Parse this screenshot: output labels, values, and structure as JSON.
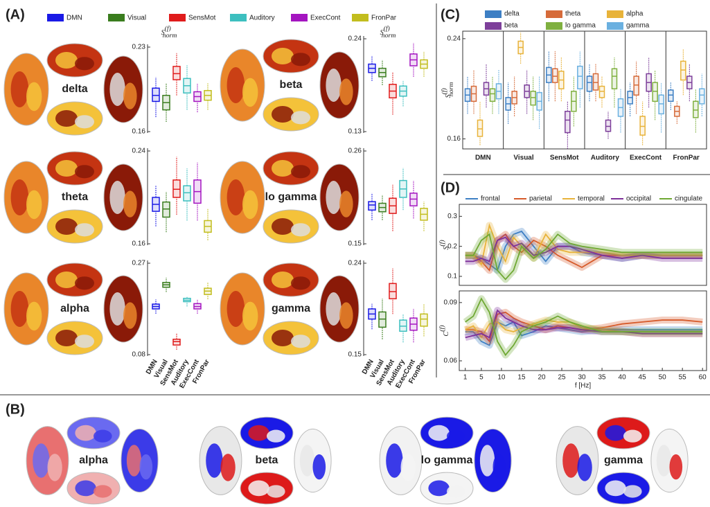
{
  "panels": [
    "(A)",
    "(B)",
    "(C)",
    "(D)"
  ],
  "panel_a_legend": [
    {
      "name": "DMN",
      "color": "#1a1ae6"
    },
    {
      "name": "Visual",
      "color": "#3a7d1e"
    },
    {
      "name": "SensMot",
      "color": "#e01b1b"
    },
    {
      "name": "Auditory",
      "color": "#3dbfbf"
    },
    {
      "name": "ExecCont",
      "color": "#a415c0"
    },
    {
      "name": "FronPar",
      "color": "#c2bd1e"
    }
  ],
  "panel_a_ylabel": {
    "base": "S",
    "sup": "(f)",
    "sub": "norm"
  },
  "panel_b_labels": [
    "alpha",
    "beta",
    "lo gamma",
    "gamma"
  ],
  "chart_data": [
    {
      "type": "box",
      "title": "delta",
      "ylim": [
        0.16,
        0.23
      ],
      "yticks": [
        0.16,
        0.23
      ],
      "boxes": [
        [
          0.172,
          0.185,
          0.19,
          0.196,
          0.205
        ],
        [
          0.168,
          0.178,
          0.184,
          0.19,
          0.2
        ],
        [
          0.19,
          0.203,
          0.208,
          0.214,
          0.225
        ],
        [
          0.178,
          0.192,
          0.198,
          0.204,
          0.215
        ],
        [
          0.176,
          0.185,
          0.189,
          0.193,
          0.2
        ],
        [
          0.178,
          0.186,
          0.19,
          0.194,
          0.2
        ]
      ]
    },
    {
      "type": "box",
      "title": "beta",
      "ylim": [
        0.13,
        0.24
      ],
      "yticks": [
        0.13,
        0.24
      ],
      "boxes": [
        [
          0.19,
          0.2,
          0.205,
          0.21,
          0.22
        ],
        [
          0.185,
          0.195,
          0.2,
          0.205,
          0.215
        ],
        [
          0.15,
          0.17,
          0.178,
          0.186,
          0.2
        ],
        [
          0.16,
          0.172,
          0.178,
          0.184,
          0.19
        ],
        [
          0.195,
          0.208,
          0.215,
          0.222,
          0.235
        ],
        [
          0.195,
          0.205,
          0.21,
          0.215,
          0.225
        ]
      ]
    },
    {
      "type": "box",
      "title": "theta",
      "ylim": [
        0.16,
        0.24
      ],
      "yticks": [
        0.16,
        0.24
      ],
      "boxes": [
        [
          0.175,
          0.188,
          0.194,
          0.2,
          0.21
        ],
        [
          0.17,
          0.183,
          0.19,
          0.196,
          0.205
        ],
        [
          0.185,
          0.2,
          0.207,
          0.215,
          0.235
        ],
        [
          0.18,
          0.197,
          0.204,
          0.21,
          0.225
        ],
        [
          0.18,
          0.195,
          0.205,
          0.215,
          0.23
        ],
        [
          0.163,
          0.17,
          0.175,
          0.18,
          0.19
        ]
      ]
    },
    {
      "type": "box",
      "title": "lo gamma",
      "ylim": [
        0.15,
        0.26
      ],
      "yticks": [
        0.15,
        0.26
      ],
      "boxes": [
        [
          0.178,
          0.19,
          0.196,
          0.2,
          0.21
        ],
        [
          0.178,
          0.188,
          0.193,
          0.198,
          0.208
        ],
        [
          0.165,
          0.186,
          0.195,
          0.204,
          0.22
        ],
        [
          0.19,
          0.205,
          0.215,
          0.225,
          0.24
        ],
        [
          0.18,
          0.195,
          0.203,
          0.21,
          0.225
        ],
        [
          0.165,
          0.178,
          0.185,
          0.192,
          0.2
        ]
      ]
    },
    {
      "type": "box",
      "title": "alpha",
      "ylim": [
        0.08,
        0.27
      ],
      "yticks": [
        0.08,
        0.27
      ],
      "categories": [
        "DMN",
        "Visual",
        "SensMot",
        "Auditory",
        "ExecCont",
        "FronPar"
      ],
      "boxes": [
        [
          0.165,
          0.175,
          0.18,
          0.185,
          0.195
        ],
        [
          0.21,
          0.22,
          0.225,
          0.23,
          0.24
        ],
        [
          0.09,
          0.1,
          0.107,
          0.112,
          0.125
        ],
        [
          0.18,
          0.19,
          0.193,
          0.197,
          0.2
        ],
        [
          0.165,
          0.175,
          0.18,
          0.186,
          0.195
        ],
        [
          0.195,
          0.205,
          0.212,
          0.218,
          0.23
        ]
      ]
    },
    {
      "type": "box",
      "title": "gamma",
      "ylim": [
        0.15,
        0.24
      ],
      "yticks": [
        0.15,
        0.24
      ],
      "categories": [
        "DMN",
        "Visual",
        "SensMot",
        "Auditory",
        "ExecCont",
        "FronPar"
      ],
      "boxes": [
        [
          0.175,
          0.185,
          0.19,
          0.195,
          0.2
        ],
        [
          0.165,
          0.177,
          0.185,
          0.192,
          0.205
        ],
        [
          0.19,
          0.205,
          0.212,
          0.22,
          0.235
        ],
        [
          0.162,
          0.173,
          0.178,
          0.184,
          0.19
        ],
        [
          0.162,
          0.174,
          0.18,
          0.186,
          0.195
        ],
        [
          0.168,
          0.178,
          0.185,
          0.19,
          0.2
        ]
      ]
    },
    {
      "type": "groupbox",
      "ylabel": {
        "base": "S",
        "sup": "(f)",
        "sub": "norm"
      },
      "ylim": [
        0.152,
        0.246
      ],
      "yticks": [
        0.16,
        0.24
      ],
      "categories": [
        "DMN",
        "Visual",
        "SensMot",
        "Auditory",
        "ExecCont",
        "FronPar"
      ],
      "series": [
        {
          "name": "delta",
          "color": "#3d7fc4",
          "values": [
            [
              0.18,
              0.19,
              0.195,
              0.2,
              0.21
            ],
            [
              0.172,
              0.183,
              0.188,
              0.193,
              0.205
            ],
            [
              0.19,
              0.205,
              0.211,
              0.217,
              0.23
            ],
            [
              0.19,
              0.198,
              0.205,
              0.21,
              0.22
            ],
            [
              0.178,
              0.188,
              0.193,
              0.198,
              0.205
            ],
            [
              0.183,
              0.19,
              0.195,
              0.199,
              0.205
            ]
          ]
        },
        {
          "name": "theta",
          "color": "#d66b3a",
          "values": [
            [
              0.18,
              0.19,
              0.196,
              0.202,
              0.215
            ],
            [
              0.178,
              0.188,
              0.193,
              0.198,
              0.21
            ],
            [
              0.19,
              0.205,
              0.21,
              0.216,
              0.23
            ],
            [
              0.19,
              0.199,
              0.205,
              0.212,
              0.22
            ],
            [
              0.18,
              0.195,
              0.203,
              0.21,
              0.222
            ],
            [
              0.172,
              0.178,
              0.182,
              0.186,
              0.19
            ]
          ]
        },
        {
          "name": "alpha",
          "color": "#e8b33a",
          "values": [
            [
              0.155,
              0.162,
              0.168,
              0.175,
              0.19
            ],
            [
              0.22,
              0.228,
              0.233,
              0.238,
              0.245
            ],
            [
              0.19,
              0.2,
              0.207,
              0.214,
              0.225
            ],
            [
              0.185,
              0.193,
              0.198,
              0.202,
              0.21
            ],
            [
              0.155,
              0.163,
              0.17,
              0.178,
              0.19
            ],
            [
              0.195,
              0.207,
              0.215,
              0.222,
              0.232
            ]
          ]
        },
        {
          "name": "beta",
          "color": "#7d3f9a",
          "values": [
            [
              0.185,
              0.195,
              0.2,
              0.205,
              0.22
            ],
            [
              0.18,
              0.193,
              0.198,
              0.203,
              0.215
            ],
            [
              0.152,
              0.165,
              0.175,
              0.182,
              0.19
            ],
            [
              0.16,
              0.166,
              0.17,
              0.175,
              0.182
            ],
            [
              0.185,
              0.198,
              0.205,
              0.212,
              0.225
            ],
            [
              0.19,
              0.2,
              0.205,
              0.21,
              0.22
            ]
          ]
        },
        {
          "name": "lo gamma",
          "color": "#7fb040",
          "values": [
            [
              0.18,
              0.19,
              0.196,
              0.2,
              0.21
            ],
            [
              0.175,
              0.187,
              0.193,
              0.198,
              0.21
            ],
            [
              0.17,
              0.182,
              0.19,
              0.198,
              0.21
            ],
            [
              0.185,
              0.2,
              0.21,
              0.216,
              0.225
            ],
            [
              0.175,
              0.19,
              0.198,
              0.205,
              0.215
            ],
            [
              0.165,
              0.177,
              0.183,
              0.19,
              0.2
            ]
          ]
        },
        {
          "name": "gamma",
          "color": "#6ab0e0",
          "values": [
            [
              0.18,
              0.192,
              0.198,
              0.204,
              0.215
            ],
            [
              0.168,
              0.183,
              0.19,
              0.197,
              0.21
            ],
            [
              0.185,
              0.2,
              0.21,
              0.218,
              0.23
            ],
            [
              0.165,
              0.178,
              0.185,
              0.192,
              0.2
            ],
            [
              0.165,
              0.18,
              0.188,
              0.195,
              0.205
            ],
            [
              0.178,
              0.188,
              0.195,
              0.2,
              0.212
            ]
          ]
        }
      ]
    },
    {
      "type": "line",
      "ylabel": {
        "base": "S",
        "sup": "(f)"
      },
      "xlim": [
        -0.5,
        61
      ],
      "ylim": [
        0.07,
        0.34
      ],
      "yticks": [
        0.1,
        0.2,
        0.3
      ],
      "x": [
        1,
        3,
        5,
        7,
        9,
        11,
        13,
        15,
        18,
        21,
        24,
        27,
        30,
        35,
        40,
        45,
        50,
        55,
        60
      ],
      "series": [
        {
          "name": "frontal",
          "color": "#3d7fc4",
          "values": [
            0.17,
            0.17,
            0.16,
            0.14,
            0.12,
            0.2,
            0.24,
            0.25,
            0.2,
            0.15,
            0.2,
            0.2,
            0.18,
            0.17,
            0.16,
            0.17,
            0.17,
            0.17,
            0.17
          ]
        },
        {
          "name": "parietal",
          "color": "#d65a2a",
          "values": [
            0.17,
            0.17,
            0.15,
            0.12,
            0.22,
            0.24,
            0.2,
            0.18,
            0.22,
            0.2,
            0.17,
            0.15,
            0.13,
            0.17,
            0.17,
            0.17,
            0.17,
            0.17,
            0.17
          ]
        },
        {
          "name": "temporal",
          "color": "#e8b33a",
          "values": [
            0.17,
            0.17,
            0.14,
            0.27,
            0.2,
            0.15,
            0.23,
            0.2,
            0.16,
            0.24,
            0.19,
            0.18,
            0.18,
            0.18,
            0.17,
            0.17,
            0.17,
            0.17,
            0.17
          ]
        },
        {
          "name": "occipital",
          "color": "#7d2f9a",
          "values": [
            0.15,
            0.15,
            0.16,
            0.15,
            0.22,
            0.23,
            0.2,
            0.21,
            0.17,
            0.18,
            0.2,
            0.2,
            0.19,
            0.17,
            0.16,
            0.17,
            0.16,
            0.16,
            0.16
          ]
        },
        {
          "name": "cingulate",
          "color": "#6ea832",
          "values": [
            0.17,
            0.17,
            0.22,
            0.24,
            0.12,
            0.09,
            0.12,
            0.2,
            0.16,
            0.19,
            0.24,
            0.21,
            0.2,
            0.19,
            0.18,
            0.18,
            0.18,
            0.18,
            0.18
          ]
        }
      ]
    },
    {
      "type": "line",
      "ylabel": {
        "base": "C",
        "sup": "(f)"
      },
      "xlabel": "f [Hz]",
      "xlim": [
        -0.5,
        61
      ],
      "ylim": [
        0.055,
        0.096
      ],
      "yticks": [
        0.06,
        0.09
      ],
      "xticks": [
        1,
        5,
        10,
        15,
        20,
        25,
        30,
        35,
        40,
        45,
        50,
        55,
        60
      ],
      "x": [
        1,
        3,
        5,
        7,
        9,
        11,
        13,
        15,
        18,
        21,
        24,
        27,
        30,
        35,
        40,
        45,
        50,
        55,
        60
      ],
      "series": [
        {
          "color": "#3d7fc4",
          "values": [
            0.075,
            0.075,
            0.07,
            0.068,
            0.08,
            0.078,
            0.08,
            0.073,
            0.075,
            0.078,
            0.077,
            0.076,
            0.075,
            0.076,
            0.076,
            0.076,
            0.076,
            0.076,
            0.076
          ]
        },
        {
          "color": "#d65a2a",
          "values": [
            0.076,
            0.076,
            0.075,
            0.07,
            0.084,
            0.085,
            0.082,
            0.08,
            0.078,
            0.076,
            0.078,
            0.077,
            0.076,
            0.077,
            0.079,
            0.08,
            0.081,
            0.081,
            0.08
          ]
        },
        {
          "color": "#e8b33a",
          "values": [
            0.076,
            0.078,
            0.072,
            0.079,
            0.08,
            0.076,
            0.075,
            0.077,
            0.079,
            0.081,
            0.08,
            0.08,
            0.077,
            0.076,
            0.075,
            0.074,
            0.074,
            0.074,
            0.074
          ]
        },
        {
          "color": "#7d2f9a",
          "values": [
            0.072,
            0.073,
            0.074,
            0.072,
            0.086,
            0.082,
            0.08,
            0.078,
            0.076,
            0.076,
            0.077,
            0.077,
            0.076,
            0.075,
            0.075,
            0.074,
            0.074,
            0.074,
            0.074
          ]
        },
        {
          "color": "#6ea832",
          "values": [
            0.08,
            0.083,
            0.092,
            0.085,
            0.07,
            0.063,
            0.068,
            0.075,
            0.078,
            0.08,
            0.083,
            0.08,
            0.078,
            0.075,
            0.075,
            0.075,
            0.075,
            0.075,
            0.075
          ]
        }
      ]
    }
  ]
}
